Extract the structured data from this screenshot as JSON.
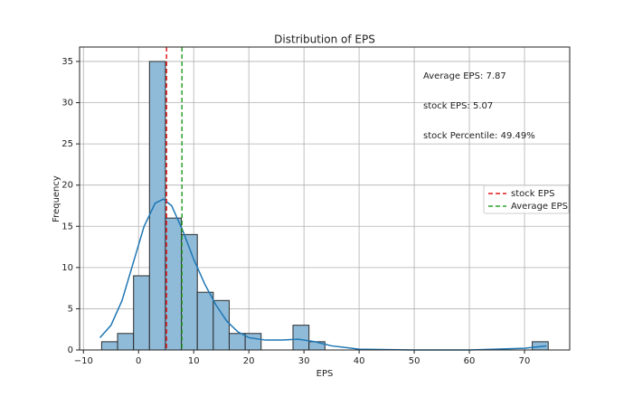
{
  "chart_data": {
    "type": "histogram",
    "title": "Distribution of EPS",
    "xlabel": "EPS",
    "ylabel": "Frequency",
    "bins": [
      -6.7,
      -3.81,
      -0.91,
      1.98,
      4.87,
      7.76,
      10.66,
      13.55,
      16.44,
      19.34,
      22.23,
      25.12,
      28.01,
      30.91,
      33.8,
      36.69,
      39.59,
      42.48,
      45.37,
      48.27,
      51.16,
      54.05,
      56.94,
      59.84,
      62.73,
      65.62,
      68.52,
      71.41,
      74.3
    ],
    "values": [
      1,
      2,
      9,
      35,
      16,
      14,
      7,
      6,
      2,
      2,
      0,
      0,
      3,
      1,
      0,
      0,
      0,
      0,
      0,
      0,
      0,
      0,
      0,
      0,
      0,
      0,
      0,
      1
    ],
    "color": "#8fbbd9",
    "edgecolor": "#2b2b2b",
    "kde": {
      "color": "#1f77b4",
      "x": [
        -7,
        -5,
        -3,
        -1,
        1,
        3,
        4.5,
        6,
        8,
        10,
        12,
        14,
        16,
        18,
        20,
        23,
        26,
        29,
        32,
        35,
        40,
        50,
        60,
        70,
        74
      ],
      "values": [
        1.5,
        3,
        6,
        10.5,
        15,
        17.8,
        18.3,
        17.5,
        14.5,
        11,
        8,
        5.5,
        3.5,
        2.2,
        1.5,
        1.2,
        1.2,
        1.3,
        1,
        0.5,
        0.1,
        0,
        0,
        0.2,
        0.5
      ]
    },
    "vlines": [
      {
        "name": "stock EPS",
        "color": "#e41a1c",
        "value": 5.07
      },
      {
        "name": "Average EPS",
        "color": "#2ca02c",
        "value": 7.87
      }
    ],
    "annotations": [
      "Average EPS: 7.87",
      "stock EPS: 5.07",
      "stock Percentile: 49.49%"
    ],
    "xlim": [
      -10.7,
      78.2
    ],
    "ylim": [
      0,
      36.75
    ],
    "xticks": [
      {
        "value": -10,
        "label": "−10"
      },
      0,
      10,
      20,
      30,
      40,
      50,
      60,
      70
    ],
    "yticks": [
      0,
      5,
      10,
      15,
      20,
      25,
      30,
      35
    ],
    "grid": true,
    "legend": "center right"
  }
}
